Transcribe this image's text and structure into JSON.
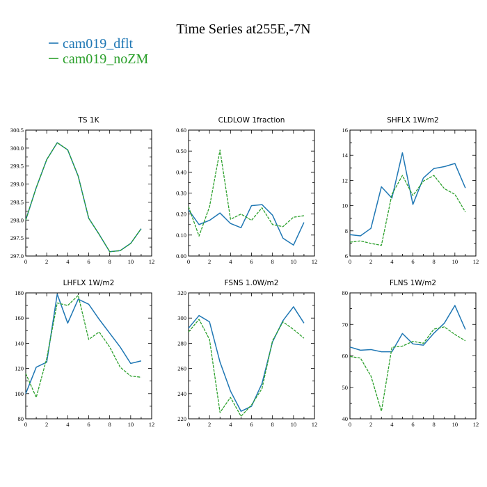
{
  "page_title": "Time Series at255E,-7N",
  "legend": [
    {
      "label": "cam019_dflt",
      "color": "#1f77b4"
    },
    {
      "label": "cam019_noZM",
      "color": "#2ca02c"
    }
  ],
  "chart_data": [
    {
      "type": "line",
      "title": "TS   1K",
      "x": [
        0,
        1,
        2,
        3,
        4,
        5,
        6,
        7,
        8,
        9,
        10,
        11
      ],
      "xlim": [
        0,
        12
      ],
      "xticks": [
        0,
        2,
        4,
        6,
        8,
        10,
        12
      ],
      "ylim": [
        297.0,
        300.5
      ],
      "yticks": [
        "297.0",
        "297.5",
        "298.0",
        "298.5",
        "299.0",
        "299.5",
        "300.0",
        "300.5"
      ],
      "series": [
        {
          "name": "cam019_dflt",
          "values": [
            298.0,
            298.9,
            299.68,
            300.15,
            299.95,
            299.22,
            298.05,
            297.6,
            297.12,
            297.15,
            297.35,
            297.76
          ]
        },
        {
          "name": "cam019_noZM",
          "values": [
            298.0,
            298.9,
            299.68,
            300.15,
            299.95,
            299.22,
            298.05,
            297.6,
            297.12,
            297.15,
            297.35,
            297.76
          ]
        }
      ]
    },
    {
      "type": "line",
      "title": "CLDLOW   1fraction",
      "x": [
        0,
        1,
        2,
        3,
        4,
        5,
        6,
        7,
        8,
        9,
        10,
        11
      ],
      "xlim": [
        0,
        12
      ],
      "xticks": [
        0,
        2,
        4,
        6,
        8,
        10,
        12
      ],
      "ylim": [
        0.0,
        0.6
      ],
      "yticks": [
        "0.00",
        "0.10",
        "0.20",
        "0.30",
        "0.40",
        "0.50",
        "0.60"
      ],
      "series": [
        {
          "name": "cam019_dflt",
          "values": [
            0.22,
            0.15,
            0.17,
            0.205,
            0.155,
            0.135,
            0.24,
            0.245,
            0.195,
            0.085,
            0.052,
            0.16
          ]
        },
        {
          "name": "cam019_noZM",
          "values": [
            0.235,
            0.095,
            0.235,
            0.505,
            0.175,
            0.2,
            0.17,
            0.23,
            0.15,
            0.14,
            0.185,
            0.192
          ]
        }
      ]
    },
    {
      "type": "line",
      "title": "SHFLX   1W/m2",
      "x": [
        0,
        1,
        2,
        3,
        4,
        5,
        6,
        7,
        8,
        9,
        10,
        11
      ],
      "xlim": [
        0,
        12
      ],
      "xticks": [
        0,
        2,
        4,
        6,
        8,
        10,
        12
      ],
      "ylim": [
        6,
        16
      ],
      "yticks": [
        "6",
        "8",
        "10",
        "12",
        "14",
        "16"
      ],
      "series": [
        {
          "name": "cam019_dflt",
          "values": [
            7.7,
            7.6,
            8.2,
            11.5,
            10.6,
            14.2,
            10.1,
            12.2,
            12.95,
            13.1,
            13.35,
            11.4
          ]
        },
        {
          "name": "cam019_noZM",
          "values": [
            7.1,
            7.2,
            7.0,
            6.85,
            10.9,
            12.4,
            10.8,
            11.95,
            12.4,
            11.35,
            10.9,
            9.5
          ]
        }
      ]
    },
    {
      "type": "line",
      "title": "LHFLX   1W/m2",
      "x": [
        0,
        1,
        2,
        3,
        4,
        5,
        6,
        7,
        8,
        9,
        10,
        11
      ],
      "xlim": [
        0,
        12
      ],
      "xticks": [
        0,
        2,
        4,
        6,
        8,
        10,
        12
      ],
      "ylim": [
        80,
        180
      ],
      "yticks": [
        "80",
        "100",
        "120",
        "140",
        "160",
        "180"
      ],
      "series": [
        {
          "name": "cam019_dflt",
          "values": [
            100,
            121,
            125,
            179,
            156,
            175,
            171,
            159,
            148,
            137,
            124,
            126
          ]
        },
        {
          "name": "cam019_noZM",
          "values": [
            116,
            97,
            128,
            172,
            170,
            178,
            143,
            149,
            137,
            121,
            114,
            113
          ]
        }
      ]
    },
    {
      "type": "line",
      "title": "FSNS   1.0W/m2",
      "x": [
        0,
        1,
        2,
        3,
        4,
        5,
        6,
        7,
        8,
        9,
        10,
        11
      ],
      "xlim": [
        0,
        12
      ],
      "xticks": [
        0,
        2,
        4,
        6,
        8,
        10,
        12
      ],
      "ylim": [
        220,
        320
      ],
      "yticks": [
        "220",
        "240",
        "260",
        "280",
        "300",
        "320"
      ],
      "series": [
        {
          "name": "cam019_dflt",
          "values": [
            292,
            302,
            297,
            265,
            242,
            226,
            230,
            248,
            281,
            298,
            309,
            296
          ]
        },
        {
          "name": "cam019_noZM",
          "values": [
            289,
            299,
            283,
            225,
            237,
            222,
            231,
            244,
            282,
            297,
            291,
            284
          ]
        }
      ]
    },
    {
      "type": "line",
      "title": "FLNS   1W/m2",
      "x": [
        0,
        1,
        2,
        3,
        4,
        5,
        6,
        7,
        8,
        9,
        10,
        11
      ],
      "xlim": [
        0,
        12
      ],
      "xticks": [
        0,
        2,
        4,
        6,
        8,
        10,
        12
      ],
      "ylim": [
        40,
        80
      ],
      "yticks": [
        "40",
        "50",
        "60",
        "70",
        "80"
      ],
      "series": [
        {
          "name": "cam019_dflt",
          "values": [
            62.8,
            61.8,
            62.0,
            61.3,
            61.3,
            67.1,
            63.8,
            63.4,
            67.2,
            70.4,
            76.0,
            68.4
          ]
        },
        {
          "name": "cam019_noZM",
          "values": [
            59.8,
            59.3,
            53.6,
            42.4,
            62.7,
            63.1,
            64.6,
            64.0,
            68.5,
            69.2,
            66.8,
            64.8
          ]
        }
      ]
    }
  ]
}
